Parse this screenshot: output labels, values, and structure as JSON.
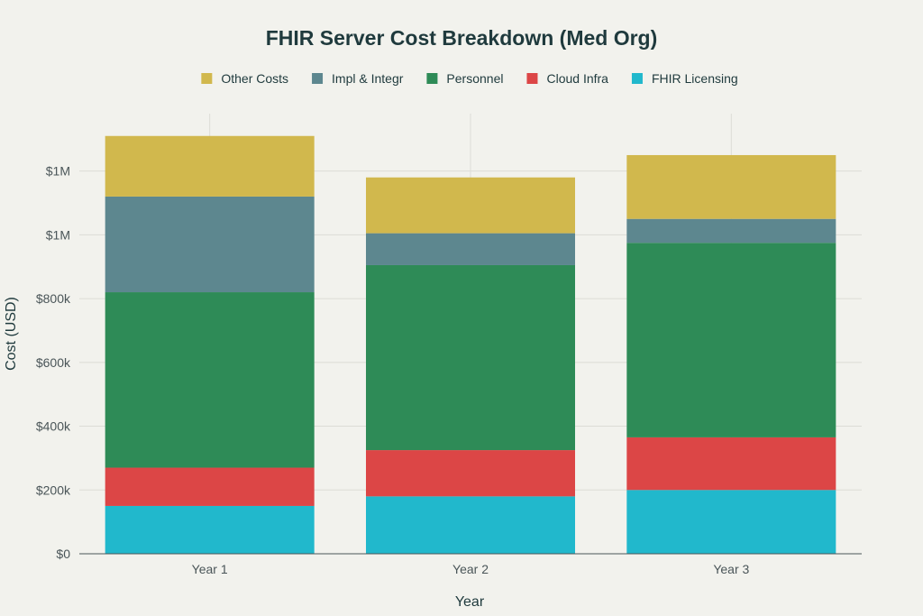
{
  "chart_data": {
    "type": "bar",
    "stacked": true,
    "title": "FHIR Server Cost Breakdown (Med Org)",
    "xlabel": "Year",
    "ylabel": "Cost (USD)",
    "categories": [
      "Year 1",
      "Year 2",
      "Year 3"
    ],
    "ylim": [
      0,
      1380000
    ],
    "yticks": [
      {
        "value": 0,
        "label": "$0"
      },
      {
        "value": 200000,
        "label": "$200k"
      },
      {
        "value": 400000,
        "label": "$400k"
      },
      {
        "value": 600000,
        "label": "$600k"
      },
      {
        "value": 800000,
        "label": "$800k"
      },
      {
        "value": 1000000,
        "label": "$1M"
      },
      {
        "value": 1200000,
        "label": "$1M"
      }
    ],
    "grid": true,
    "legend_position": "top-center",
    "legend_order": [
      "Other Costs",
      "Impl & Integr",
      "Personnel",
      "Cloud Infra",
      "FHIR Licensing"
    ],
    "series": [
      {
        "name": "FHIR Licensing",
        "color": "#21b8cc",
        "values": [
          150000,
          180000,
          200000
        ]
      },
      {
        "name": "Cloud Infra",
        "color": "#dc4646",
        "values": [
          120000,
          145000,
          165000
        ]
      },
      {
        "name": "Personnel",
        "color": "#2e8b57",
        "values": [
          550000,
          580000,
          610000
        ]
      },
      {
        "name": "Impl & Integr",
        "color": "#5d878f",
        "values": [
          300000,
          100000,
          75000
        ]
      },
      {
        "name": "Other Costs",
        "color": "#d1b84d",
        "values": [
          190000,
          175000,
          200000
        ]
      }
    ]
  }
}
